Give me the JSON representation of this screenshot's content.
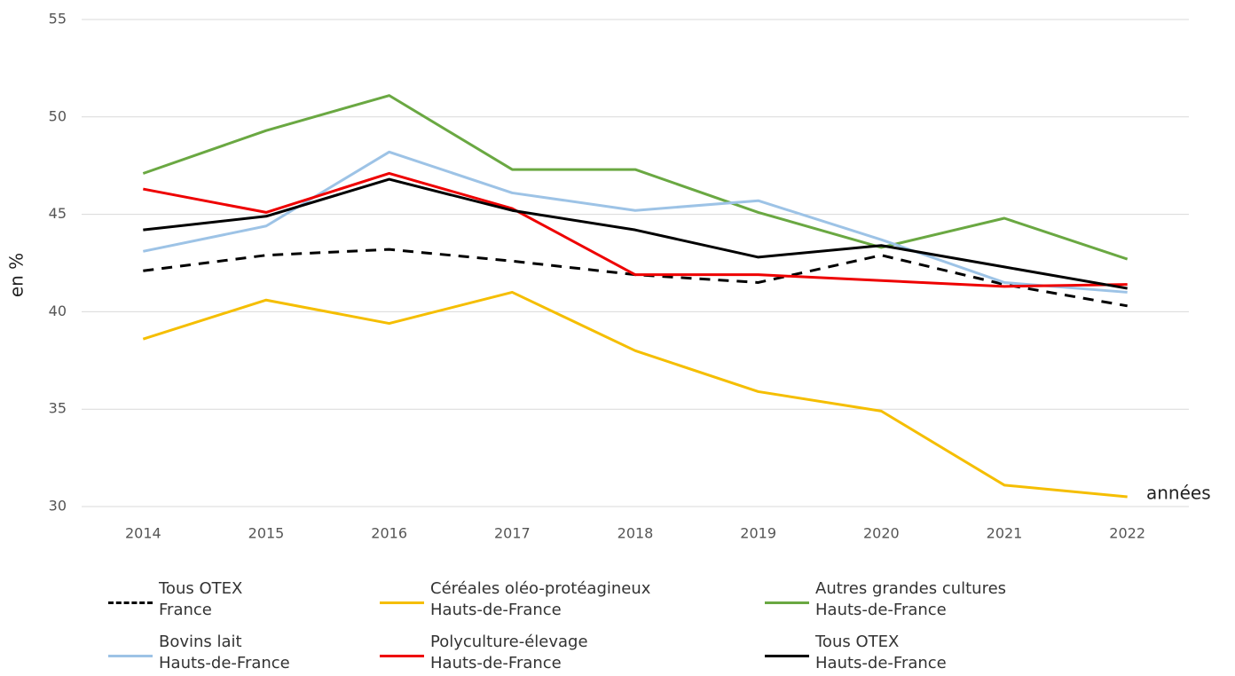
{
  "chart_data": {
    "type": "line",
    "categories": [
      "2014",
      "2015",
      "2016",
      "2017",
      "2018",
      "2019",
      "2020",
      "2021",
      "2022"
    ],
    "y_label": "en %",
    "x_label": "années",
    "ylim": [
      30,
      55
    ],
    "yticks": [
      30,
      35,
      40,
      45,
      50,
      55
    ],
    "grid": true,
    "series": [
      {
        "name": "Tous OTEX\nFrance",
        "color": "#000000",
        "dashed": true,
        "values": [
          42.1,
          42.9,
          43.2,
          42.6,
          41.9,
          41.5,
          42.9,
          41.4,
          40.3
        ]
      },
      {
        "name": "Céréales oléo-protéagineux\nHauts-de-France",
        "color": "#f5be00",
        "values": [
          38.6,
          40.6,
          39.4,
          41.0,
          38.0,
          35.9,
          34.9,
          31.1,
          30.5
        ]
      },
      {
        "name": "Autres grandes cultures\nHauts-de-France",
        "color": "#6aa842",
        "values": [
          47.1,
          49.3,
          51.1,
          47.3,
          47.3,
          45.1,
          43.3,
          44.8,
          42.7
        ]
      },
      {
        "name": "Bovins lait\nHauts-de-France",
        "color": "#9dc3e6",
        "values": [
          43.1,
          44.4,
          48.2,
          46.1,
          45.2,
          45.7,
          43.7,
          41.5,
          41.0
        ]
      },
      {
        "name": "Polyculture-élevage\nHauts-de-France",
        "color": "#ee0000",
        "values": [
          46.3,
          45.1,
          47.1,
          45.3,
          41.9,
          41.9,
          41.6,
          41.3,
          41.4
        ]
      },
      {
        "name": "Tous OTEX\nHauts-de-France",
        "color": "#000000",
        "values": [
          44.2,
          44.9,
          46.8,
          45.2,
          44.2,
          42.8,
          43.4,
          42.3,
          41.2
        ]
      }
    ]
  }
}
